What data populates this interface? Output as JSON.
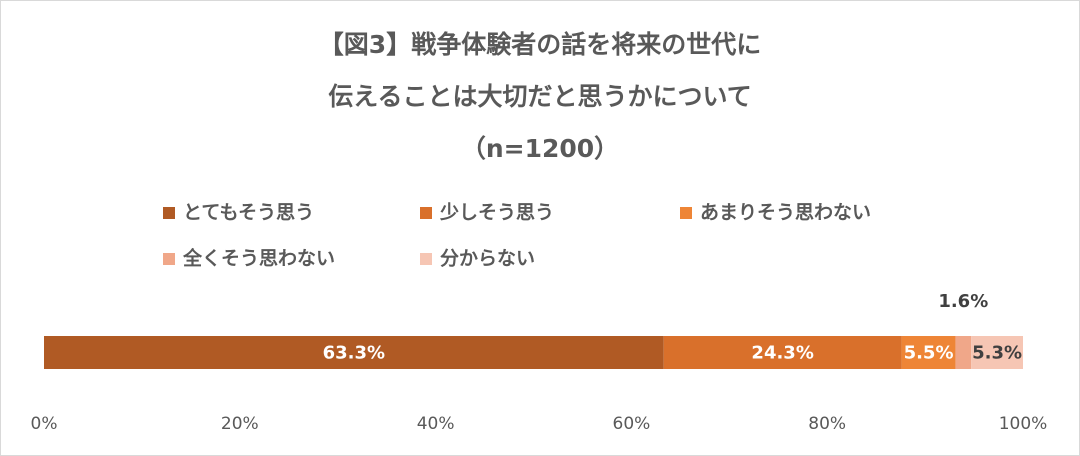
{
  "chart_data": {
    "type": "stacked-bar-horizontal",
    "title": [
      "【図3】戦争体験者の話を将来の世代に",
      "伝えることは大切だと思うかについて",
      "（n=1200）"
    ],
    "series": [
      {
        "name": "とてもそう思う",
        "color": "#b05a24",
        "values": [
          63.3
        ],
        "value_labels": [
          "63.3%"
        ]
      },
      {
        "name": "少しそう思う",
        "color": "#d9702b",
        "values": [
          24.3
        ],
        "value_labels": [
          "24.3%"
        ]
      },
      {
        "name": "あまりそう思わない",
        "color": "#ee8536",
        "values": [
          5.5
        ],
        "value_labels": [
          "5.5%"
        ]
      },
      {
        "name": "全くそう思わない",
        "color": "#f0a789",
        "values": [
          1.6
        ],
        "value_labels": [
          "1.6%"
        ]
      },
      {
        "name": "分からない",
        "color": "#f6c6b4",
        "values": [
          5.3
        ],
        "value_labels": [
          "5.3%"
        ]
      }
    ],
    "xlim": [
      0,
      100
    ],
    "xticks": [
      {
        "value": 0,
        "label": "0%"
      },
      {
        "value": 20,
        "label": "20%"
      },
      {
        "value": 40,
        "label": "40%"
      },
      {
        "value": 60,
        "label": "60%"
      },
      {
        "value": 80,
        "label": "80%"
      },
      {
        "value": 100,
        "label": "100%"
      }
    ],
    "legend": "top"
  }
}
